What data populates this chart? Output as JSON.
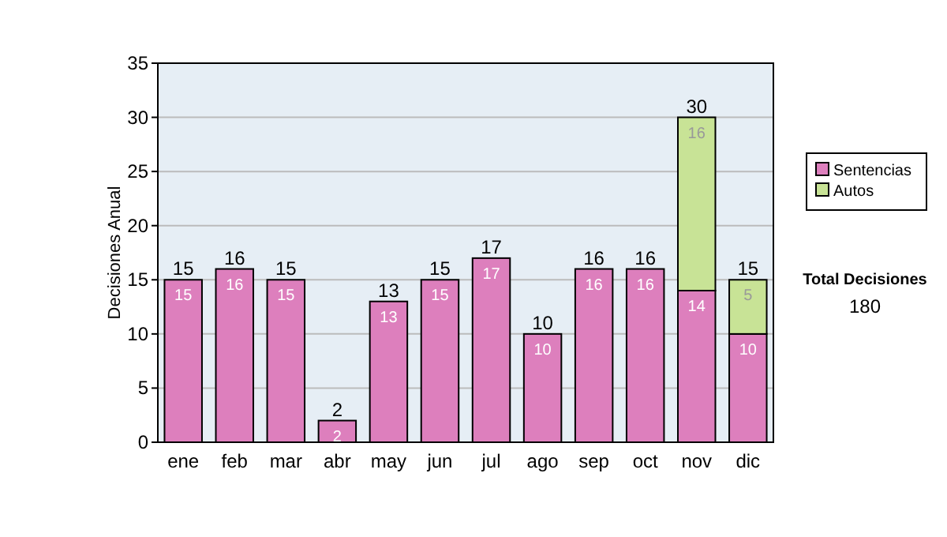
{
  "chart_data": {
    "type": "bar",
    "stacked": true,
    "ylabel": "Decisiones Anual",
    "categories": [
      "ene",
      "feb",
      "mar",
      "abr",
      "may",
      "jun",
      "jul",
      "ago",
      "sep",
      "oct",
      "nov",
      "dic"
    ],
    "series": [
      {
        "name": "Sentencias",
        "color": "#dd7fbd",
        "values": [
          15,
          16,
          15,
          2,
          13,
          15,
          17,
          10,
          16,
          16,
          14,
          10
        ],
        "value_labels": [
          "15",
          "16",
          "15",
          "2",
          "13",
          "15",
          "17",
          "10",
          "16",
          "16",
          "14",
          "10"
        ]
      },
      {
        "name": "Autos",
        "color": "#c8e396",
        "values": [
          0,
          0,
          0,
          0,
          0,
          0,
          0,
          0,
          0,
          0,
          16,
          5
        ],
        "value_labels": [
          null,
          null,
          null,
          null,
          null,
          null,
          null,
          null,
          null,
          null,
          "16",
          "5"
        ]
      }
    ],
    "totals": [
      "15",
      "16",
      "15",
      "2",
      "13",
      "15",
      "17",
      "10",
      "16",
      "16",
      "30",
      "15"
    ],
    "ylim": [
      0,
      35
    ],
    "yticks": [
      0,
      5,
      10,
      15,
      20,
      25,
      30,
      35
    ],
    "grid": "y",
    "legend": "right",
    "annotations": [
      "Total Decisiones",
      "180"
    ]
  }
}
